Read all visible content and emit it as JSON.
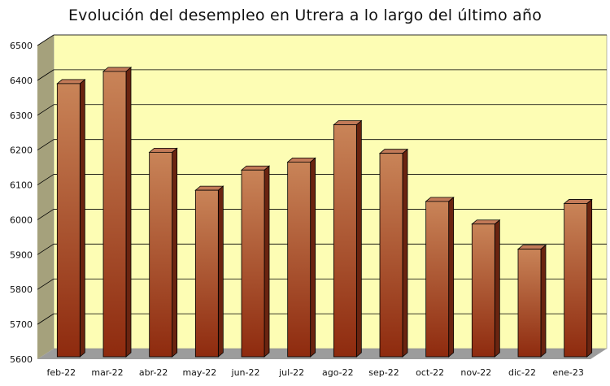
{
  "chart_data": {
    "type": "bar",
    "title": "Evolución del desempleo en Utrera a lo largo del último año",
    "xlabel": "",
    "ylabel": "",
    "categories": [
      "feb-22",
      "mar-22",
      "abr-22",
      "may-22",
      "jun-22",
      "jul-22",
      "ago-22",
      "sep-22",
      "oct-22",
      "nov-22",
      "dic-22",
      "ene-23"
    ],
    "values": [
      6400,
      6435,
      6203,
      6094,
      6152,
      6175,
      6282,
      6200,
      6062,
      5997,
      5925,
      6056
    ],
    "ylim": [
      5600,
      6500
    ],
    "yticks": [
      5600,
      5700,
      5800,
      5900,
      6000,
      6100,
      6200,
      6300,
      6400,
      6500
    ],
    "grid": true,
    "legend": "none",
    "colors": {
      "plot_background": "#fdfdb4",
      "side_wall": "#a5a17c",
      "floor": "#9c9c9c",
      "bar_light": "#c98458",
      "bar_dark": "#8e2a0e",
      "bar_side": "#6a2410",
      "bar_top": "#c27a58",
      "gridline": "#000000"
    }
  }
}
